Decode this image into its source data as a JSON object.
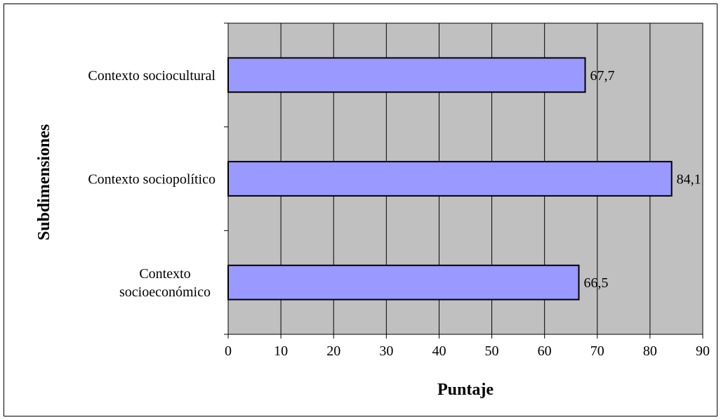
{
  "chart_data": {
    "type": "bar",
    "orientation": "horizontal",
    "categories": [
      [
        "Contexto sociocultural"
      ],
      [
        "Contexto sociopolítico"
      ],
      [
        "Contexto",
        "socioeconómico"
      ]
    ],
    "values": [
      67.7,
      84.1,
      66.5
    ],
    "value_labels": [
      "67,7",
      "84,1",
      "66,5"
    ],
    "xlim": [
      0,
      90
    ],
    "xticks": [
      0,
      10,
      20,
      30,
      40,
      50,
      60,
      70,
      80,
      90
    ],
    "xlabel": "Puntaje",
    "ylabel": "Subdimensiones",
    "grid": true,
    "legend": "none",
    "colors": {
      "plot_background": "#c0c0c0",
      "bar_fill": "#9999ff",
      "bar_stroke": "#000000",
      "grid": "#000000"
    }
  }
}
